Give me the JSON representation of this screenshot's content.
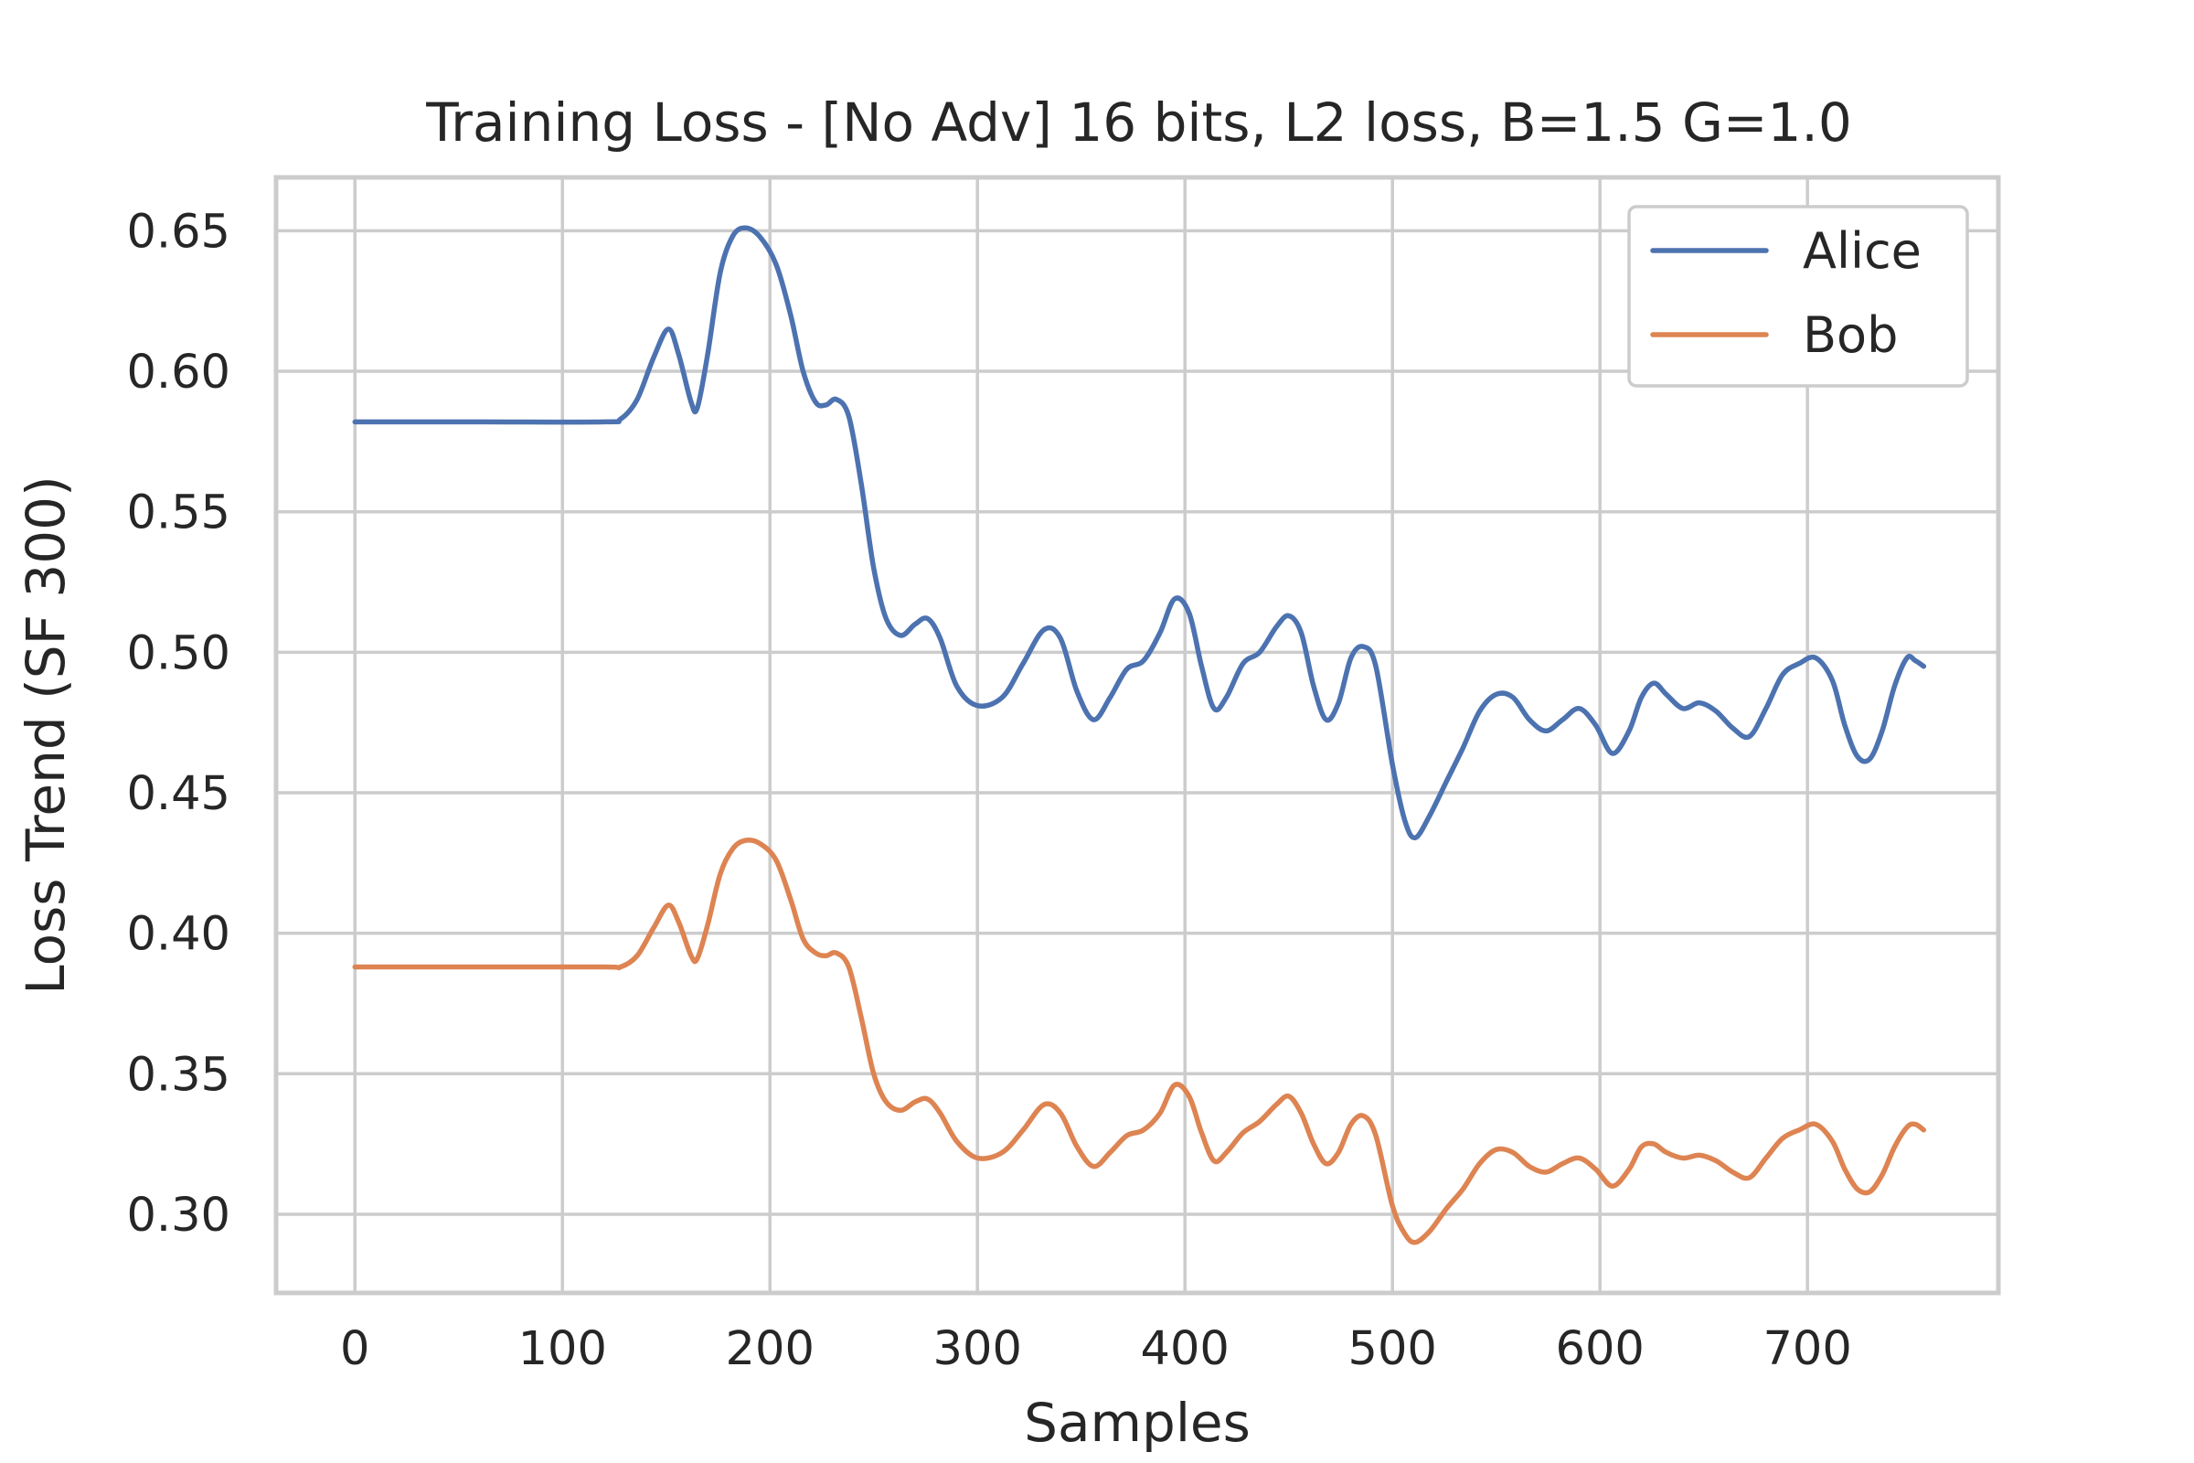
{
  "chart_data": {
    "type": "line",
    "title": "Training Loss - [No Adv] 16 bits, L2 loss, B=1.5 G=1.0",
    "xlabel": "Samples",
    "ylabel": "Loss Trend (SF 300)",
    "xlim": [
      -38,
      792
    ],
    "ylim": [
      0.272,
      0.669
    ],
    "xticks": [
      0,
      100,
      200,
      300,
      400,
      500,
      600,
      700
    ],
    "xtick_labels": [
      "0",
      "100",
      "200",
      "300",
      "400",
      "500",
      "600",
      "700"
    ],
    "yticks": [
      0.3,
      0.35,
      0.4,
      0.45,
      0.5,
      0.55,
      0.6,
      0.65
    ],
    "ytick_labels": [
      "0.30",
      "0.35",
      "0.40",
      "0.45",
      "0.50",
      "0.55",
      "0.60",
      "0.65"
    ],
    "grid": true,
    "legend_position": "top-right",
    "series": [
      {
        "name": "Alice",
        "color": "#4c72b0",
        "points": [
          [
            0,
            0.582
          ],
          [
            60,
            0.582
          ],
          [
            120,
            0.582
          ],
          [
            128,
            0.583
          ],
          [
            136,
            0.59
          ],
          [
            144,
            0.605
          ],
          [
            151,
            0.615
          ],
          [
            156,
            0.606
          ],
          [
            162,
            0.589
          ],
          [
            165,
            0.587
          ],
          [
            170,
            0.606
          ],
          [
            176,
            0.635
          ],
          [
            182,
            0.648
          ],
          [
            188,
            0.651
          ],
          [
            195,
            0.648
          ],
          [
            203,
            0.638
          ],
          [
            210,
            0.62
          ],
          [
            216,
            0.6
          ],
          [
            222,
            0.589
          ],
          [
            227,
            0.588
          ],
          [
            232,
            0.59
          ],
          [
            238,
            0.584
          ],
          [
            244,
            0.56
          ],
          [
            250,
            0.53
          ],
          [
            256,
            0.512
          ],
          [
            263,
            0.506
          ],
          [
            270,
            0.51
          ],
          [
            276,
            0.512
          ],
          [
            282,
            0.505
          ],
          [
            290,
            0.488
          ],
          [
            300,
            0.481
          ],
          [
            312,
            0.484
          ],
          [
            322,
            0.496
          ],
          [
            332,
            0.508
          ],
          [
            340,
            0.505
          ],
          [
            348,
            0.486
          ],
          [
            356,
            0.476
          ],
          [
            364,
            0.484
          ],
          [
            372,
            0.494
          ],
          [
            380,
            0.497
          ],
          [
            388,
            0.507
          ],
          [
            395,
            0.519
          ],
          [
            402,
            0.514
          ],
          [
            408,
            0.495
          ],
          [
            414,
            0.48
          ],
          [
            420,
            0.484
          ],
          [
            428,
            0.496
          ],
          [
            436,
            0.5
          ],
          [
            444,
            0.509
          ],
          [
            450,
            0.513
          ],
          [
            456,
            0.507
          ],
          [
            462,
            0.488
          ],
          [
            468,
            0.476
          ],
          [
            474,
            0.482
          ],
          [
            480,
            0.498
          ],
          [
            486,
            0.502
          ],
          [
            492,
            0.495
          ],
          [
            500,
            0.46
          ],
          [
            506,
            0.44
          ],
          [
            511,
            0.434
          ],
          [
            518,
            0.442
          ],
          [
            526,
            0.454
          ],
          [
            534,
            0.466
          ],
          [
            542,
            0.479
          ],
          [
            550,
            0.485
          ],
          [
            558,
            0.484
          ],
          [
            566,
            0.476
          ],
          [
            574,
            0.472
          ],
          [
            582,
            0.476
          ],
          [
            590,
            0.48
          ],
          [
            598,
            0.474
          ],
          [
            606,
            0.464
          ],
          [
            614,
            0.472
          ],
          [
            620,
            0.484
          ],
          [
            626,
            0.489
          ],
          [
            632,
            0.485
          ],
          [
            640,
            0.48
          ],
          [
            648,
            0.482
          ],
          [
            656,
            0.479
          ],
          [
            664,
            0.473
          ],
          [
            672,
            0.47
          ],
          [
            680,
            0.48
          ],
          [
            688,
            0.492
          ],
          [
            696,
            0.496
          ],
          [
            704,
            0.498
          ],
          [
            712,
            0.49
          ],
          [
            718,
            0.474
          ],
          [
            724,
            0.463
          ],
          [
            730,
            0.462
          ],
          [
            736,
            0.472
          ],
          [
            742,
            0.488
          ],
          [
            748,
            0.498
          ],
          [
            752,
            0.497
          ],
          [
            756,
            0.495
          ]
        ]
      },
      {
        "name": "Bob",
        "color": "#dd8452",
        "points": [
          [
            0,
            0.388
          ],
          [
            60,
            0.388
          ],
          [
            120,
            0.388
          ],
          [
            128,
            0.388
          ],
          [
            136,
            0.392
          ],
          [
            144,
            0.402
          ],
          [
            151,
            0.41
          ],
          [
            156,
            0.404
          ],
          [
            162,
            0.392
          ],
          [
            165,
            0.391
          ],
          [
            170,
            0.403
          ],
          [
            176,
            0.421
          ],
          [
            182,
            0.43
          ],
          [
            188,
            0.433
          ],
          [
            195,
            0.432
          ],
          [
            203,
            0.426
          ],
          [
            210,
            0.412
          ],
          [
            216,
            0.398
          ],
          [
            222,
            0.393
          ],
          [
            227,
            0.392
          ],
          [
            232,
            0.393
          ],
          [
            238,
            0.388
          ],
          [
            244,
            0.37
          ],
          [
            250,
            0.35
          ],
          [
            256,
            0.34
          ],
          [
            263,
            0.337
          ],
          [
            270,
            0.34
          ],
          [
            276,
            0.341
          ],
          [
            282,
            0.336
          ],
          [
            290,
            0.326
          ],
          [
            300,
            0.32
          ],
          [
            312,
            0.322
          ],
          [
            322,
            0.33
          ],
          [
            332,
            0.339
          ],
          [
            340,
            0.336
          ],
          [
            348,
            0.324
          ],
          [
            356,
            0.317
          ],
          [
            364,
            0.322
          ],
          [
            372,
            0.328
          ],
          [
            380,
            0.33
          ],
          [
            388,
            0.336
          ],
          [
            395,
            0.346
          ],
          [
            402,
            0.342
          ],
          [
            408,
            0.329
          ],
          [
            414,
            0.319
          ],
          [
            420,
            0.322
          ],
          [
            428,
            0.329
          ],
          [
            436,
            0.333
          ],
          [
            444,
            0.339
          ],
          [
            450,
            0.342
          ],
          [
            456,
            0.336
          ],
          [
            462,
            0.325
          ],
          [
            468,
            0.318
          ],
          [
            474,
            0.322
          ],
          [
            480,
            0.332
          ],
          [
            486,
            0.335
          ],
          [
            492,
            0.328
          ],
          [
            500,
            0.303
          ],
          [
            506,
            0.293
          ],
          [
            511,
            0.29
          ],
          [
            518,
            0.294
          ],
          [
            526,
            0.302
          ],
          [
            534,
            0.309
          ],
          [
            542,
            0.318
          ],
          [
            550,
            0.323
          ],
          [
            558,
            0.322
          ],
          [
            566,
            0.317
          ],
          [
            574,
            0.315
          ],
          [
            582,
            0.318
          ],
          [
            590,
            0.32
          ],
          [
            598,
            0.316
          ],
          [
            606,
            0.31
          ],
          [
            614,
            0.316
          ],
          [
            620,
            0.324
          ],
          [
            626,
            0.325
          ],
          [
            632,
            0.322
          ],
          [
            640,
            0.32
          ],
          [
            648,
            0.321
          ],
          [
            656,
            0.319
          ],
          [
            664,
            0.315
          ],
          [
            672,
            0.313
          ],
          [
            680,
            0.32
          ],
          [
            688,
            0.327
          ],
          [
            696,
            0.33
          ],
          [
            704,
            0.332
          ],
          [
            712,
            0.326
          ],
          [
            718,
            0.316
          ],
          [
            724,
            0.309
          ],
          [
            730,
            0.308
          ],
          [
            736,
            0.314
          ],
          [
            742,
            0.324
          ],
          [
            748,
            0.331
          ],
          [
            752,
            0.332
          ],
          [
            756,
            0.33
          ]
        ]
      }
    ]
  }
}
